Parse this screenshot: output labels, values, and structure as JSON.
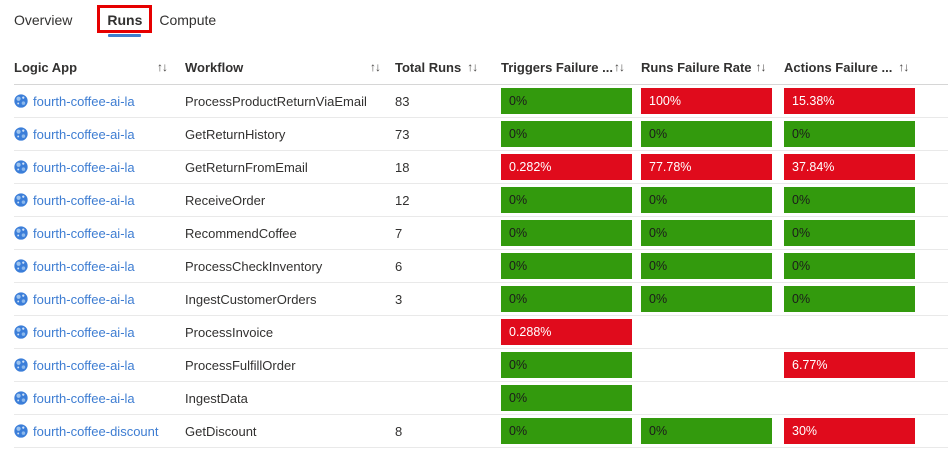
{
  "tabs": [
    {
      "label": "Overview",
      "selected": false
    },
    {
      "label": "Runs",
      "selected": true
    },
    {
      "label": "Compute",
      "selected": false
    }
  ],
  "sort_icon": "↑↓",
  "columns": [
    {
      "id": "logic_app",
      "label": "Logic App"
    },
    {
      "id": "workflow",
      "label": "Workflow"
    },
    {
      "id": "total_runs",
      "label": "Total Runs"
    },
    {
      "id": "triggers_failure_rate",
      "label": "Triggers Failure ..."
    },
    {
      "id": "runs_failure_rate",
      "label": "Runs Failure Rate"
    },
    {
      "id": "actions_failure_rate",
      "label": "Actions Failure ..."
    }
  ],
  "colors": {
    "green": "#339a0d",
    "red": "#e00b1c",
    "link_blue": "#3e7dd2",
    "tab_underline": "#3f7fce",
    "annotation_red": "#e60000",
    "icon_blue": "#3b7ed9"
  },
  "rows": [
    {
      "logic_app": "fourth-coffee-ai-la",
      "workflow": "ProcessProductReturnViaEmail",
      "total_runs": "83",
      "triggers": {
        "text": "0%",
        "color": "green"
      },
      "runs": {
        "text": "100%",
        "color": "red"
      },
      "actions": {
        "text": "15.38%",
        "color": "red"
      }
    },
    {
      "logic_app": "fourth-coffee-ai-la",
      "workflow": "GetReturnHistory",
      "total_runs": "73",
      "triggers": {
        "text": "0%",
        "color": "green"
      },
      "runs": {
        "text": "0%",
        "color": "green"
      },
      "actions": {
        "text": "0%",
        "color": "green"
      }
    },
    {
      "logic_app": "fourth-coffee-ai-la",
      "workflow": "GetReturnFromEmail",
      "total_runs": "18",
      "triggers": {
        "text": "0.282%",
        "color": "red"
      },
      "runs": {
        "text": "77.78%",
        "color": "red"
      },
      "actions": {
        "text": "37.84%",
        "color": "red"
      }
    },
    {
      "logic_app": "fourth-coffee-ai-la",
      "workflow": "ReceiveOrder",
      "total_runs": "12",
      "triggers": {
        "text": "0%",
        "color": "green"
      },
      "runs": {
        "text": "0%",
        "color": "green"
      },
      "actions": {
        "text": "0%",
        "color": "green"
      }
    },
    {
      "logic_app": "fourth-coffee-ai-la",
      "workflow": "RecommendCoffee",
      "total_runs": "7",
      "triggers": {
        "text": "0%",
        "color": "green"
      },
      "runs": {
        "text": "0%",
        "color": "green"
      },
      "actions": {
        "text": "0%",
        "color": "green"
      }
    },
    {
      "logic_app": "fourth-coffee-ai-la",
      "workflow": "ProcessCheckInventory",
      "total_runs": "6",
      "triggers": {
        "text": "0%",
        "color": "green"
      },
      "runs": {
        "text": "0%",
        "color": "green"
      },
      "actions": {
        "text": "0%",
        "color": "green"
      }
    },
    {
      "logic_app": "fourth-coffee-ai-la",
      "workflow": "IngestCustomerOrders",
      "total_runs": "3",
      "triggers": {
        "text": "0%",
        "color": "green"
      },
      "runs": {
        "text": "0%",
        "color": "green"
      },
      "actions": {
        "text": "0%",
        "color": "green"
      }
    },
    {
      "logic_app": "fourth-coffee-ai-la",
      "workflow": "ProcessInvoice",
      "total_runs": "",
      "triggers": {
        "text": "0.288%",
        "color": "red"
      },
      "runs": null,
      "actions": null
    },
    {
      "logic_app": "fourth-coffee-ai-la",
      "workflow": "ProcessFulfillOrder",
      "total_runs": "",
      "triggers": {
        "text": "0%",
        "color": "green"
      },
      "runs": null,
      "actions": {
        "text": "6.77%",
        "color": "red"
      }
    },
    {
      "logic_app": "fourth-coffee-ai-la",
      "workflow": "IngestData",
      "total_runs": "",
      "triggers": {
        "text": "0%",
        "color": "green"
      },
      "runs": null,
      "actions": null
    },
    {
      "logic_app": "fourth-coffee-discount",
      "workflow": "GetDiscount",
      "total_runs": "8",
      "triggers": {
        "text": "0%",
        "color": "green"
      },
      "runs": {
        "text": "0%",
        "color": "green"
      },
      "actions": {
        "text": "30%",
        "color": "red"
      }
    }
  ]
}
